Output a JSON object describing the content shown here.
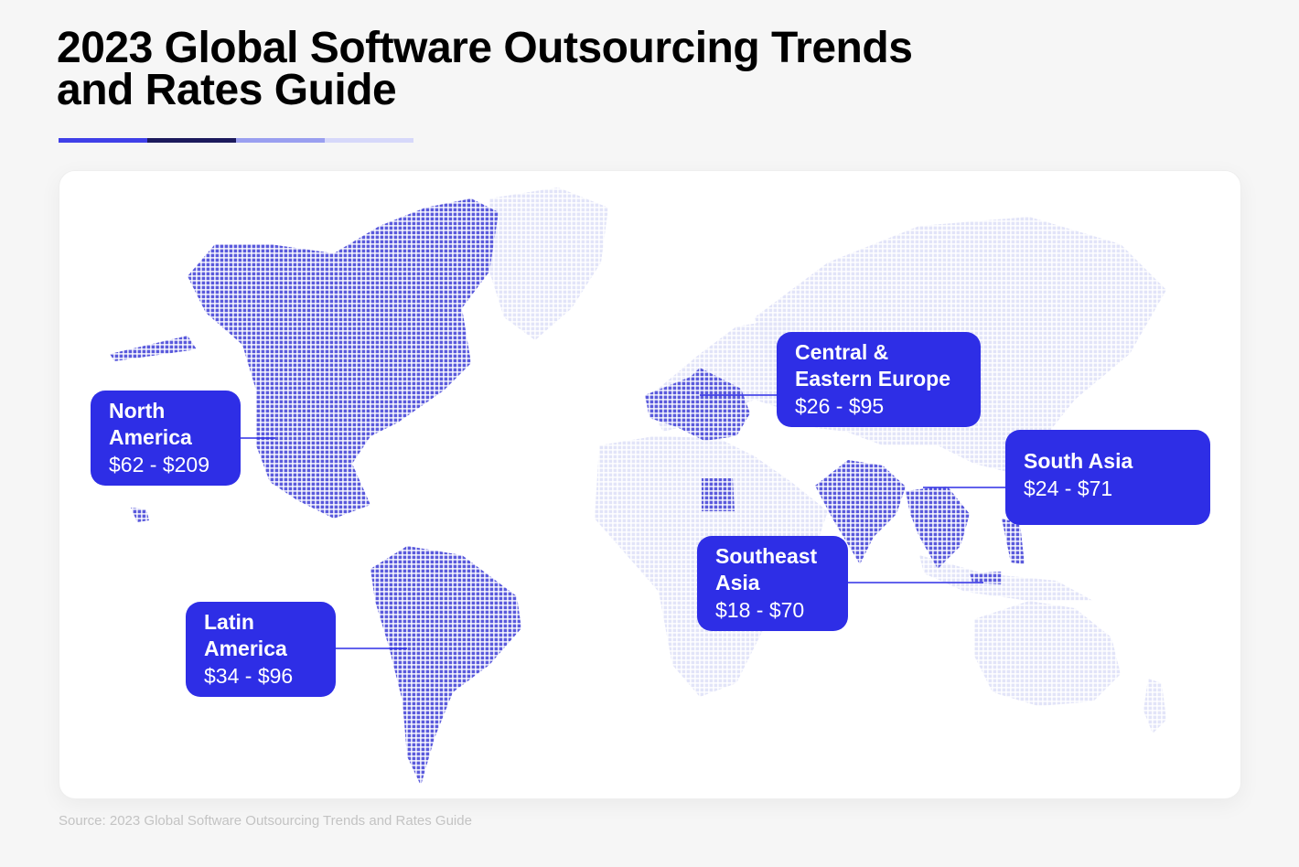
{
  "title": {
    "line1": "2023 Global Software Outsourcing Trends",
    "line2": "and Rates Guide"
  },
  "accent_bar_colors": [
    "#3f3fe8",
    "#1c1a5c",
    "#9a9ff0",
    "#d6d8fa"
  ],
  "colors": {
    "highlight": "#2e2ee6",
    "map_highlight": "#5a5adc",
    "map_base": "#e2e4f8",
    "connector": "#2e2ee6"
  },
  "regions": [
    {
      "id": "north-america",
      "name_lines": [
        "North",
        "America"
      ],
      "rate": "$62 - $209"
    },
    {
      "id": "latin-america",
      "name_lines": [
        "Latin",
        "America"
      ],
      "rate": "$34 - $96"
    },
    {
      "id": "central-eastern-europe",
      "name_lines": [
        "Central &",
        "Eastern Europe"
      ],
      "rate": "$26 - $95"
    },
    {
      "id": "south-asia",
      "name_lines": [
        "South Asia"
      ],
      "rate": "$24 - $71"
    },
    {
      "id": "southeast-asia",
      "name_lines": [
        "Southeast",
        "Asia"
      ],
      "rate": "$18 - $70"
    }
  ],
  "source": "Source: 2023 Global Software Outsourcing Trends and Rates Guide"
}
